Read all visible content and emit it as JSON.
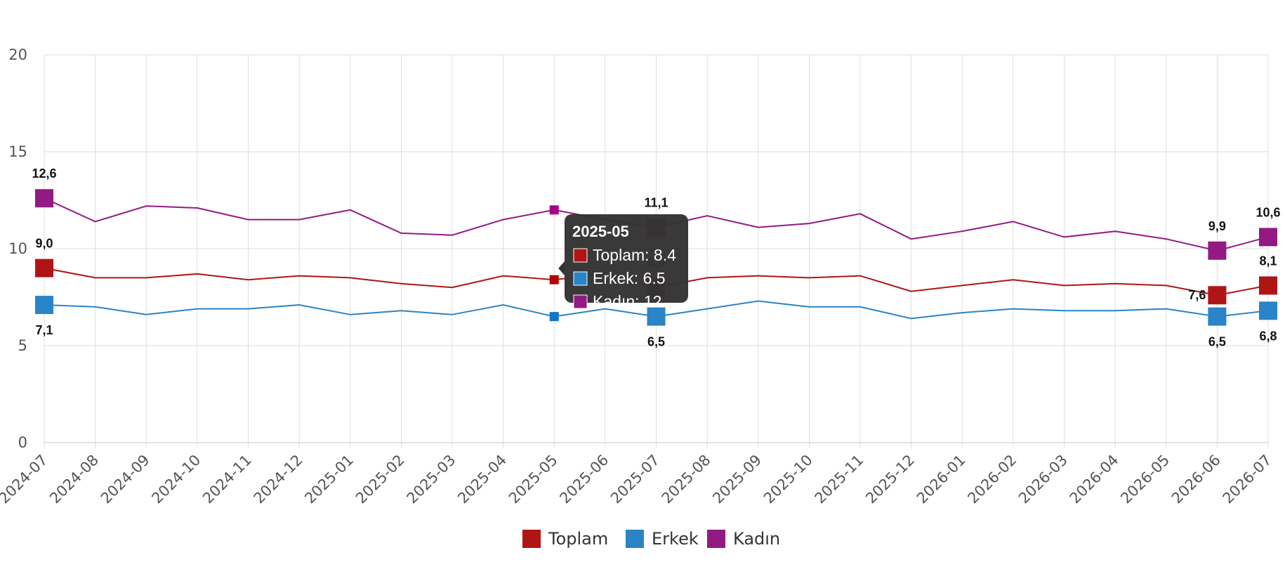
{
  "chart_data": {
    "type": "line",
    "title": "",
    "xlabel": "",
    "ylabel": "",
    "ylim": [
      0,
      20
    ],
    "yticks": [
      0,
      5,
      10,
      15,
      20
    ],
    "grid": true,
    "legend_position": "bottom-center",
    "categories": [
      "2024-07",
      "2024-08",
      "2024-09",
      "2024-10",
      "2024-11",
      "2024-12",
      "2025-01",
      "2025-02",
      "2025-03",
      "2025-04",
      "2025-05",
      "2025-06",
      "2025-07",
      "2025-08",
      "2025-09",
      "2025-10",
      "2025-11",
      "2025-12",
      "2026-01",
      "2026-02",
      "2026-03",
      "2026-04",
      "2026-05",
      "2026-06",
      "2026-07"
    ],
    "series": [
      {
        "name": "Toplam",
        "color": "#b01515",
        "values": [
          9.0,
          8.5,
          8.5,
          8.7,
          8.4,
          8.6,
          8.5,
          8.2,
          8.0,
          8.6,
          8.4,
          8.7,
          8.0,
          8.5,
          8.6,
          8.5,
          8.6,
          7.8,
          8.1,
          8.4,
          8.1,
          8.2,
          8.1,
          7.6,
          8.1
        ],
        "labels": [
          {
            "index": 0,
            "text": "9,0",
            "position": "above"
          },
          {
            "index": 12,
            "text": "8,0",
            "position": "above"
          },
          {
            "index": 23,
            "text": "7,6",
            "position": "left"
          },
          {
            "index": 24,
            "text": "8,1",
            "position": "above"
          }
        ]
      },
      {
        "name": "Erkek",
        "color": "#2a84c7",
        "values": [
          7.1,
          7.0,
          6.6,
          6.9,
          6.9,
          7.1,
          6.6,
          6.8,
          6.6,
          7.1,
          6.5,
          6.9,
          6.5,
          6.9,
          7.3,
          7.0,
          7.0,
          6.4,
          6.7,
          6.9,
          6.8,
          6.8,
          6.9,
          6.5,
          6.8
        ],
        "labels": [
          {
            "index": 0,
            "text": "7,1",
            "position": "below"
          },
          {
            "index": 12,
            "text": "6,5",
            "position": "below"
          },
          {
            "index": 23,
            "text": "6,5",
            "position": "below"
          },
          {
            "index": 24,
            "text": "6,8",
            "position": "below"
          }
        ]
      },
      {
        "name": "Kadın",
        "color": "#931a82",
        "values": [
          12.6,
          11.4,
          12.2,
          12.1,
          11.5,
          11.5,
          12.0,
          10.8,
          10.7,
          11.5,
          12.0,
          11.5,
          11.1,
          11.7,
          11.1,
          11.3,
          11.8,
          10.5,
          10.9,
          11.4,
          10.6,
          10.9,
          10.5,
          9.9,
          10.6
        ],
        "labels": [
          {
            "index": 0,
            "text": "12,6",
            "position": "above"
          },
          {
            "index": 12,
            "text": "11,1",
            "position": "above"
          },
          {
            "index": 23,
            "text": "9,9",
            "position": "above"
          },
          {
            "index": 24,
            "text": "10,6",
            "position": "above"
          }
        ]
      }
    ],
    "highlighted": [
      {
        "index": 0,
        "style": "large-marker"
      },
      {
        "index": 12,
        "style": "large-marker"
      },
      {
        "index": 23,
        "style": "large-marker"
      },
      {
        "index": 24,
        "style": "large-marker"
      }
    ],
    "tooltip": {
      "index": 10,
      "title": "2025-05",
      "rows": [
        "Toplam: 8.4",
        "Erkek: 6.5",
        "Kadın: 12"
      ],
      "background": "#333333"
    }
  }
}
